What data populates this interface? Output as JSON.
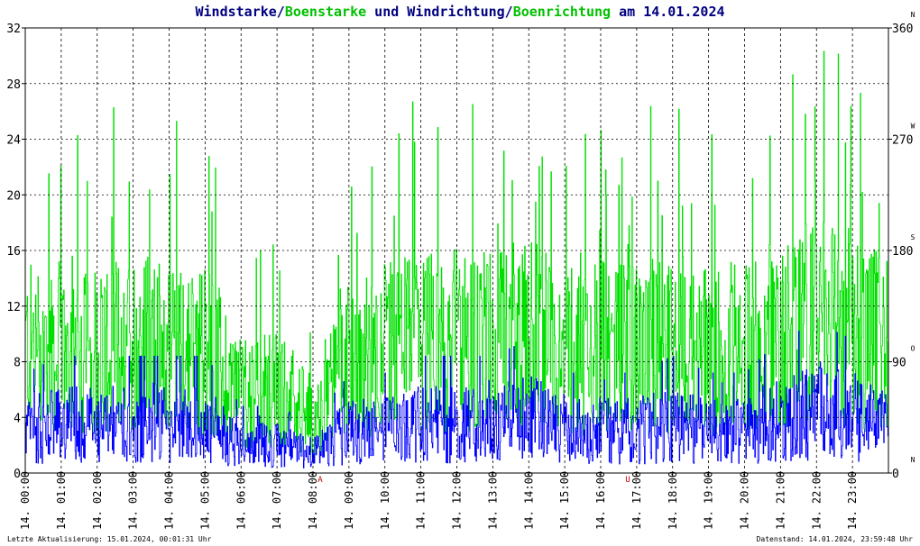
{
  "title": {
    "part1": "Windstarke/",
    "part2": "Boenstarke",
    "part3": " und Windrichtung/",
    "part4": "Boenrichtung",
    "part5": " am 14.01.2024"
  },
  "footer": {
    "left": "Letzte Aktualisierung: 15.01.2024, 00:01:31 Uhr",
    "right": "Datenstand: 14.01.2024, 23:59:48 Uhr"
  },
  "colors": {
    "wind": "#0000ff",
    "gust": "#00e000",
    "title_dark": "#000080",
    "grid": "#000000",
    "marker": "#c00000"
  },
  "chart_data": {
    "type": "line",
    "left_axis": {
      "min": 0,
      "max": 32,
      "ticks": [
        "0",
        "4",
        "8",
        "12",
        "16",
        "20",
        "24",
        "28",
        "32"
      ]
    },
    "right_axis": {
      "min": 0,
      "max": 360,
      "ticks": [
        "0",
        "90",
        "180",
        "270",
        "360"
      ],
      "directions": [
        "N",
        "O",
        "S",
        "W",
        "N"
      ]
    },
    "x_labels": [
      "14. 00:00",
      "14. 01:00",
      "14. 02:00",
      "14. 03:00",
      "14. 04:00",
      "14. 05:00",
      "14. 06:00",
      "14. 07:00",
      "14. 08:00",
      "14. 09:00",
      "14. 10:00",
      "14. 11:00",
      "14. 12:00",
      "14. 13:00",
      "14. 14:00",
      "14. 15:00",
      "14. 16:00",
      "14. 17:00",
      "14. 18:00",
      "14. 19:00",
      "14. 20:00",
      "14. 21:00",
      "14. 22:00",
      "14. 23:00"
    ],
    "markers": [
      {
        "label": "A",
        "hour": 8.2
      },
      {
        "label": "U",
        "hour": 16.75
      }
    ],
    "hourly_wind_avg": [
      3,
      3.5,
      3.5,
      3.5,
      3.5,
      3.5,
      2,
      2,
      1.5,
      3,
      3,
      3.5,
      3.5,
      3.5,
      4,
      3,
      3,
      3,
      3.5,
      3,
      3,
      4,
      4.5,
      4
    ],
    "hourly_gust_avg": [
      9,
      9,
      9,
      9.5,
      9,
      9,
      6,
      6,
      4,
      8,
      9,
      9.5,
      9.5,
      9.5,
      10,
      9,
      9,
      9,
      9.5,
      9,
      9,
      10,
      11,
      10
    ],
    "hourly_direction_center": [
      260,
      260,
      260,
      255,
      270,
      260,
      260,
      260,
      200,
      250,
      260,
      250,
      245,
      250,
      250,
      250,
      250,
      255,
      255,
      250,
      260,
      250,
      260,
      260
    ],
    "series": [
      {
        "name": "Windstarke",
        "axis": "left"
      },
      {
        "name": "Boenstarke",
        "axis": "left"
      },
      {
        "name": "Windrichtung",
        "axis": "right"
      },
      {
        "name": "Boenrichtung",
        "axis": "right"
      }
    ]
  }
}
